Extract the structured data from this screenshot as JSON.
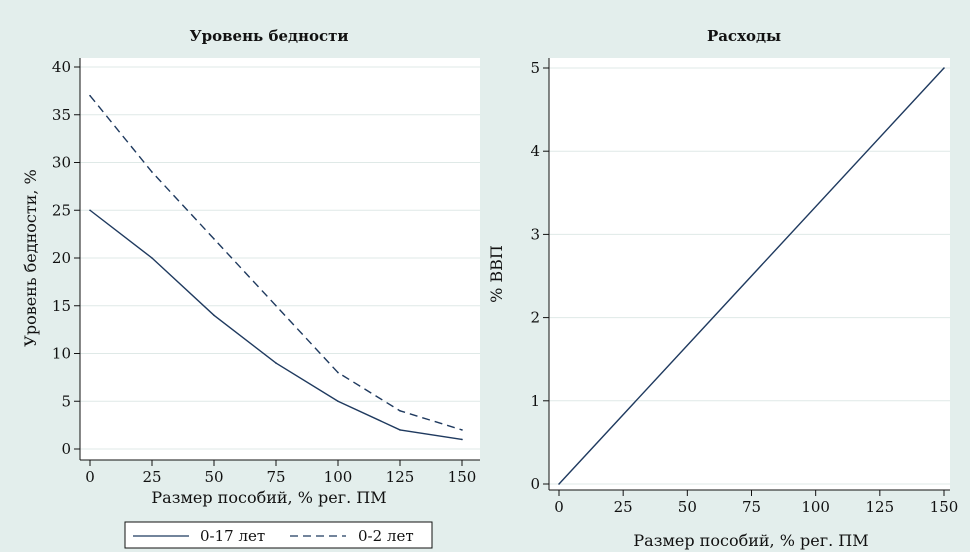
{
  "colors": {
    "background": "#e3eeec",
    "plot_background": "#ffffff",
    "line": "#1f3a5f",
    "grid": "#dfe9e7"
  },
  "chart_data": [
    {
      "type": "line",
      "title": "Уровень бедности",
      "xlabel": "Размер пособий, % рег. ПМ",
      "ylabel": "Уровень бедности, %",
      "xlim": [
        0,
        150
      ],
      "ylim": [
        0,
        40
      ],
      "x": [
        0,
        25,
        50,
        75,
        100,
        125,
        150
      ],
      "xticks": [
        "0",
        "25",
        "50",
        "75",
        "100",
        "125",
        "150"
      ],
      "yticks": [
        "0",
        "5",
        "10",
        "15",
        "20",
        "25",
        "30",
        "35",
        "40"
      ],
      "grid": true,
      "legend": "bottom",
      "series": [
        {
          "name": "0-17 лет",
          "style": "solid",
          "values": [
            25,
            20,
            14,
            9,
            5,
            2,
            1
          ]
        },
        {
          "name": "0-2 лет",
          "style": "dashed",
          "values": [
            37,
            29,
            22,
            15,
            8,
            4,
            2
          ]
        }
      ]
    },
    {
      "type": "line",
      "title": "Расходы",
      "xlabel": "Размер пособий, % рег. ПМ",
      "ylabel": "% ВВП",
      "xlim": [
        0,
        150
      ],
      "ylim": [
        0,
        5
      ],
      "x": [
        0,
        150
      ],
      "xticks": [
        "0",
        "25",
        "50",
        "75",
        "100",
        "125",
        "150"
      ],
      "yticks": [
        "0",
        "1",
        "2",
        "3",
        "4",
        "5"
      ],
      "grid": true,
      "series": [
        {
          "style": "solid",
          "values": [
            0,
            5
          ]
        }
      ]
    }
  ]
}
